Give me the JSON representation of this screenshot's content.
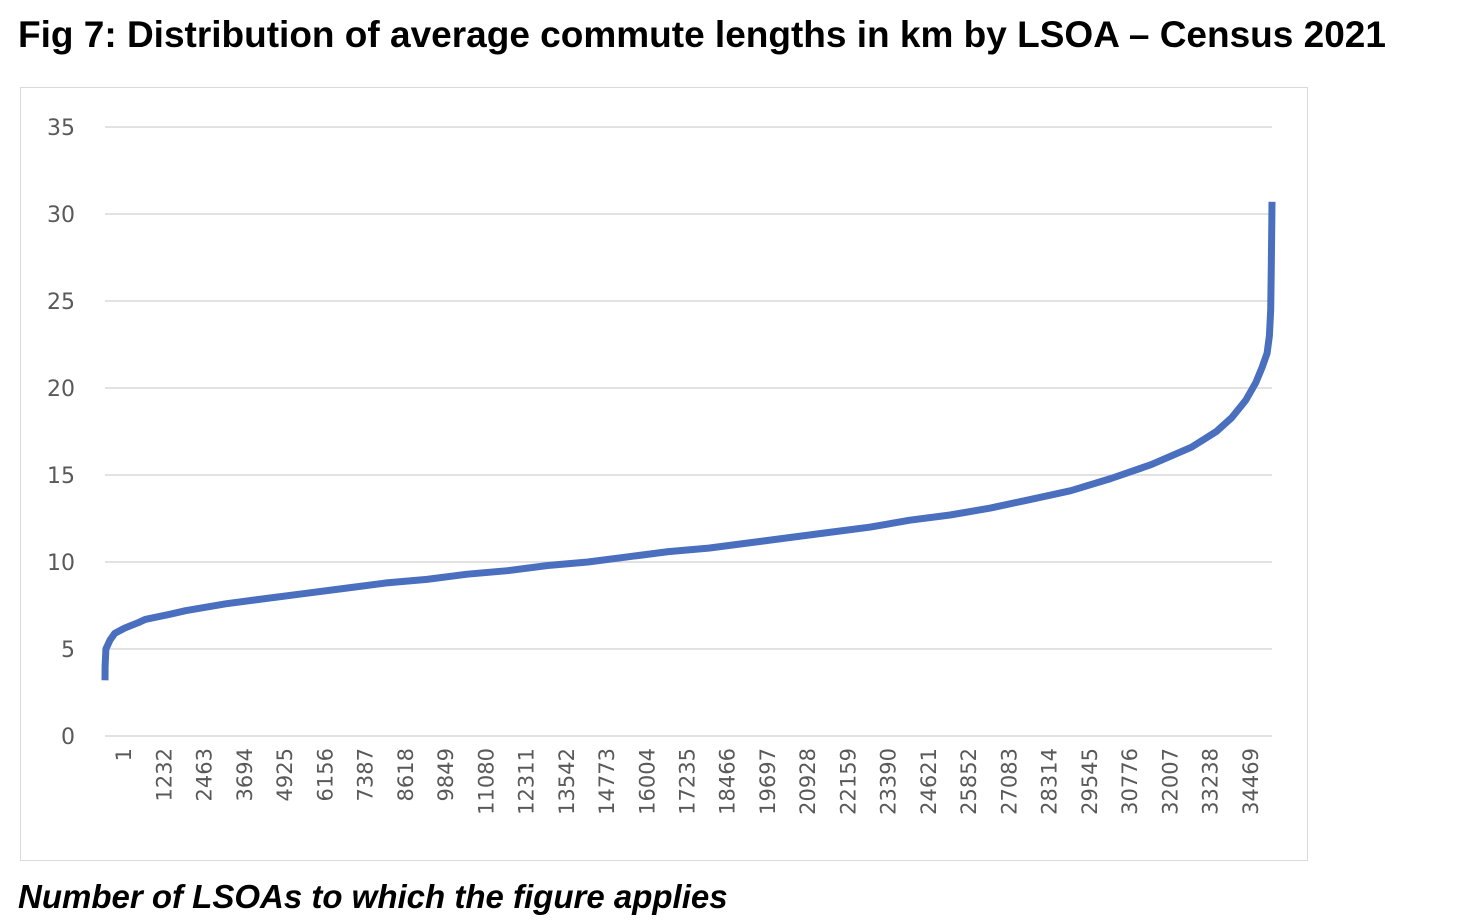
{
  "title": "Fig 7: Distribution of average commute lengths in km by LSOA – Census 2021",
  "xlabel": "Number of LSOAs to which the figure applies",
  "colors": {
    "series": "#4a6fbf",
    "grid": "#d9d9d9",
    "axis_text": "#595959",
    "border": "#d9d9d9"
  },
  "chart_data": {
    "type": "line",
    "title": "Fig 7: Distribution of average commute lengths in km by LSOA – Census 2021",
    "xlabel": "Number of LSOAs to which the figure applies",
    "ylabel": "",
    "ylim": [
      0,
      35
    ],
    "xlim": [
      1,
      35700
    ],
    "grid": true,
    "yticks": [
      0,
      5,
      10,
      15,
      20,
      25,
      30,
      35
    ],
    "xticks": [
      "1",
      "1232",
      "2463",
      "3694",
      "4925",
      "6156",
      "7387",
      "8618",
      "9849",
      "11080",
      "12311",
      "13542",
      "14773",
      "16004",
      "17235",
      "18466",
      "19697",
      "20928",
      "22159",
      "23390",
      "24621",
      "25852",
      "27083",
      "28314",
      "29545",
      "30776",
      "32007",
      "33238",
      "34469"
    ],
    "series": [
      {
        "x": [
          1,
          5,
          30,
          150,
          300,
          600,
          1000,
          1232,
          2000,
          2463,
          3694,
          4925,
          6156,
          7387,
          8618,
          9849,
          11080,
          12311,
          13542,
          14773,
          16004,
          17235,
          18466,
          19697,
          20928,
          22159,
          23390,
          24621,
          25852,
          27083,
          28314,
          29545,
          30776,
          32007,
          33238,
          34000,
          34469,
          34900,
          35200,
          35400,
          35550,
          35620,
          35660,
          35680,
          35695,
          35700
        ],
        "y": [
          3.2,
          4.0,
          5.0,
          5.5,
          5.9,
          6.2,
          6.5,
          6.7,
          7.0,
          7.2,
          7.6,
          7.9,
          8.2,
          8.5,
          8.8,
          9.0,
          9.3,
          9.5,
          9.8,
          10.0,
          10.3,
          10.6,
          10.8,
          11.1,
          11.4,
          11.7,
          12.0,
          12.4,
          12.7,
          13.1,
          13.6,
          14.1,
          14.8,
          15.6,
          16.6,
          17.5,
          18.3,
          19.3,
          20.3,
          21.2,
          22.0,
          23.0,
          24.5,
          27.0,
          29.5,
          30.7
        ]
      }
    ]
  }
}
